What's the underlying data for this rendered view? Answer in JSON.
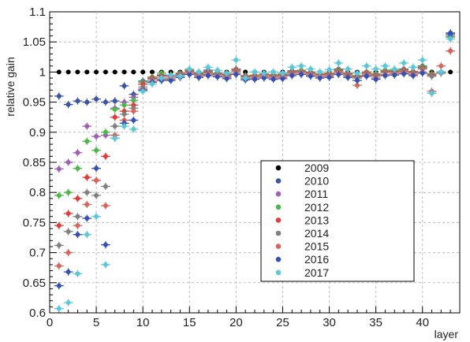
{
  "chart_data": {
    "type": "scatter",
    "title": "",
    "xlabel": "layer",
    "ylabel": "relative gain",
    "xlim": [
      0,
      44
    ],
    "ylim": [
      0.6,
      1.1
    ],
    "xticks": [
      0,
      5,
      10,
      15,
      20,
      25,
      30,
      35,
      40
    ],
    "yticks": [
      0.6,
      0.65,
      0.7,
      0.75,
      0.8,
      0.85,
      0.9,
      0.95,
      1,
      1.05,
      1.1
    ],
    "xtick_labels": [
      "0",
      "5",
      "10",
      "15",
      "20",
      "25",
      "30",
      "35",
      "40"
    ],
    "ytick_labels": [
      "0.6",
      "0.65",
      "0.7",
      "0.75",
      "0.8",
      "0.85",
      "0.9",
      "0.95",
      "1",
      "1.05",
      "1.1"
    ],
    "grid": true,
    "legend_position": "bottom-right",
    "error_bars": {
      "x": 0.5,
      "y": 0.006
    },
    "series": [
      {
        "name": "2009",
        "color": "#000000",
        "x": [
          1,
          2,
          3,
          4,
          5,
          6,
          7,
          8,
          9,
          10,
          11,
          12,
          13,
          14,
          15,
          16,
          17,
          18,
          19,
          20,
          21,
          22,
          23,
          24,
          25,
          26,
          27,
          28,
          29,
          30,
          31,
          32,
          33,
          34,
          35,
          36,
          37,
          38,
          39,
          40,
          41,
          42,
          43
        ],
        "y": [
          1,
          1,
          1,
          1,
          1,
          1,
          1,
          1,
          1,
          1,
          1,
          1,
          1,
          1,
          1,
          1,
          1,
          1,
          1,
          1,
          1,
          1,
          1,
          1,
          1,
          1,
          1,
          1,
          1,
          1,
          1,
          1,
          1,
          1,
          1,
          1,
          1,
          1,
          1,
          1,
          1,
          1,
          1
        ]
      },
      {
        "name": "2010",
        "color": "#3954a6",
        "x": [
          1,
          2,
          3,
          4,
          5,
          6,
          7,
          8,
          9,
          10,
          11,
          12,
          13,
          14,
          15,
          16,
          17,
          18,
          19,
          20,
          21,
          22,
          23,
          24,
          25,
          26,
          27,
          28,
          29,
          30,
          31,
          32,
          33,
          34,
          35,
          36,
          37,
          38,
          39,
          40,
          41,
          42,
          43
        ],
        "y": [
          0.96,
          0.946,
          0.952,
          0.95,
          0.955,
          0.95,
          0.952,
          0.977,
          0.963,
          0.985,
          0.99,
          0.995,
          0.995,
          0.998,
          1.0,
          0.997,
          1.003,
          0.998,
          0.996,
          1.005,
          0.994,
          0.995,
          0.996,
          0.995,
          0.998,
          1.002,
          1.002,
          0.999,
          0.997,
          0.998,
          1.005,
          0.998,
          0.994,
          1.0,
          0.997,
          1.003,
          1.003,
          1.005,
          1.001,
          1.01,
          0.997,
          1.0,
          1.065
        ]
      },
      {
        "name": "2011",
        "color": "#a05eb5",
        "x": [
          1,
          2,
          3,
          4,
          5,
          6,
          7,
          8,
          9,
          10,
          11,
          12,
          13,
          14,
          15,
          16,
          17,
          18,
          19,
          20,
          21,
          22,
          23,
          24,
          25,
          26,
          27,
          28,
          29,
          30,
          31,
          32,
          33,
          34,
          35,
          36,
          37,
          38,
          39,
          40,
          41,
          42,
          43
        ],
        "y": [
          0.839,
          0.85,
          0.866,
          0.91,
          0.893,
          0.895,
          0.94,
          0.95,
          0.958,
          0.98,
          0.99,
          0.99,
          0.993,
          0.996,
          1.003,
          0.998,
          1.0,
          0.998,
          0.996,
          1.005,
          0.993,
          0.995,
          0.997,
          0.995,
          0.996,
          1.0,
          1.002,
          1.0,
          0.996,
          0.997,
          1.003,
          0.998,
          0.993,
          1.0,
          0.996,
          1.002,
          1.002,
          1.004,
          1.0,
          1.008,
          0.996,
          0.999,
          1.06
        ]
      },
      {
        "name": "2012",
        "color": "#4cb848",
        "x": [
          1,
          2,
          3,
          4,
          5,
          6,
          7,
          8,
          9,
          10,
          11,
          12,
          13,
          14,
          15,
          16,
          17,
          18,
          19,
          20,
          21,
          22,
          23,
          24,
          25,
          26,
          27,
          28,
          29,
          30,
          31,
          32,
          33,
          34,
          35,
          36,
          37,
          38,
          39,
          40,
          41,
          42,
          43
        ],
        "y": [
          0.795,
          0.8,
          0.84,
          0.885,
          0.87,
          0.9,
          0.938,
          0.945,
          0.953,
          0.983,
          0.992,
          0.998,
          0.994,
          0.998,
          1.004,
          0.999,
          1.001,
          0.998,
          0.996,
          1.004,
          0.994,
          0.995,
          0.997,
          0.996,
          0.997,
          1.001,
          1.003,
          1.0,
          0.997,
          0.998,
          1.004,
          0.998,
          0.994,
          1.0,
          0.997,
          1.003,
          1.003,
          1.004,
          1.001,
          1.009,
          0.997,
          1.0,
          1.058
        ]
      },
      {
        "name": "2013",
        "color": "#e03c3c",
        "x": [
          1,
          2,
          3,
          4,
          5,
          6,
          7,
          8,
          9,
          10,
          11,
          12,
          13,
          14,
          15,
          16,
          17,
          18,
          19,
          20,
          21,
          22,
          23,
          24,
          25,
          26,
          27,
          28,
          29,
          30,
          31,
          32,
          33,
          34,
          35,
          36,
          37,
          38,
          39,
          40,
          41,
          42,
          43
        ],
        "y": [
          0.745,
          0.765,
          0.79,
          0.825,
          0.82,
          0.86,
          0.925,
          0.935,
          0.945,
          0.98,
          0.99,
          0.993,
          0.993,
          0.997,
          1.002,
          0.997,
          1.0,
          0.997,
          0.995,
          1.003,
          0.993,
          0.994,
          0.996,
          0.994,
          0.995,
          1.0,
          1.001,
          0.999,
          0.996,
          0.997,
          1.002,
          0.997,
          0.992,
          0.999,
          0.995,
          1.001,
          1.001,
          1.003,
          1.0,
          1.007,
          0.995,
          0.999,
          1.035
        ]
      },
      {
        "name": "2014",
        "color": "#808080",
        "x": [
          1,
          2,
          3,
          4,
          5,
          6,
          7,
          8,
          9,
          10,
          11,
          12,
          13,
          14,
          15,
          16,
          17,
          18,
          19,
          20,
          21,
          22,
          23,
          24,
          25,
          26,
          27,
          28,
          29,
          30,
          31,
          32,
          33,
          34,
          35,
          36,
          37,
          38,
          39,
          40,
          41,
          42,
          43
        ],
        "y": [
          0.712,
          0.735,
          0.76,
          0.8,
          0.795,
          0.81,
          0.91,
          0.93,
          0.94,
          0.975,
          0.988,
          0.99,
          0.99,
          0.995,
          1.0,
          0.995,
          0.998,
          0.996,
          0.993,
          1.001,
          0.991,
          0.992,
          0.994,
          0.992,
          0.993,
          0.998,
          1.0,
          0.997,
          0.994,
          0.995,
          1.0,
          0.995,
          0.99,
          0.997,
          0.993,
          0.999,
          0.999,
          1.001,
          0.998,
          1.005,
          0.993,
          0.998,
          1.06
        ]
      },
      {
        "name": "2015",
        "color": "#d8655b",
        "x": [
          1,
          2,
          3,
          4,
          5,
          6,
          7,
          8,
          9,
          10,
          11,
          12,
          13,
          14,
          15,
          16,
          17,
          18,
          19,
          20,
          21,
          22,
          23,
          24,
          25,
          26,
          27,
          28,
          29,
          30,
          31,
          32,
          33,
          34,
          35,
          36,
          37,
          38,
          39,
          40,
          41,
          42,
          43
        ],
        "y": [
          0.678,
          0.7,
          0.745,
          0.78,
          0.82,
          0.778,
          0.895,
          0.92,
          0.935,
          0.972,
          0.985,
          0.988,
          0.988,
          0.993,
          0.998,
          0.993,
          0.996,
          0.994,
          0.991,
          0.998,
          0.989,
          0.99,
          0.992,
          0.99,
          0.991,
          0.996,
          0.998,
          0.995,
          0.992,
          0.993,
          0.998,
          0.993,
          0.978,
          0.995,
          0.99,
          0.996,
          0.997,
          0.999,
          0.996,
          1.0,
          0.968,
          1.01,
          1.035
        ]
      },
      {
        "name": "2016",
        "color": "#3450b5",
        "x": [
          1,
          2,
          3,
          4,
          5,
          6,
          7,
          8,
          9,
          10,
          11,
          12,
          13,
          14,
          15,
          16,
          17,
          18,
          19,
          20,
          21,
          22,
          23,
          24,
          25,
          26,
          27,
          28,
          29,
          30,
          31,
          32,
          33,
          34,
          35,
          36,
          37,
          38,
          39,
          40,
          41,
          42,
          43
        ],
        "y": [
          0.645,
          0.668,
          0.73,
          0.757,
          0.84,
          0.713,
          0.89,
          0.915,
          0.92,
          0.97,
          0.983,
          0.986,
          0.986,
          0.991,
          0.996,
          0.991,
          0.994,
          0.992,
          0.989,
          0.996,
          0.987,
          0.988,
          0.99,
          0.988,
          0.989,
          0.994,
          0.996,
          0.993,
          0.99,
          0.991,
          0.996,
          0.991,
          0.986,
          0.993,
          0.988,
          0.994,
          0.995,
          0.997,
          0.994,
          0.998,
          0.965,
          1.0,
          1.063
        ]
      },
      {
        "name": "2017",
        "color": "#5cc7d8",
        "x": [
          1,
          2,
          3,
          4,
          5,
          6,
          7,
          8,
          9,
          10,
          11,
          12,
          13,
          14,
          15,
          16,
          17,
          18,
          19,
          20,
          21,
          22,
          23,
          24,
          25,
          26,
          27,
          28,
          29,
          30,
          31,
          32,
          33,
          34,
          35,
          36,
          37,
          38,
          39,
          40,
          41,
          42,
          43
        ],
        "y": [
          0.607,
          0.617,
          0.665,
          0.73,
          0.76,
          0.68,
          0.89,
          0.91,
          0.905,
          0.968,
          0.98,
          0.99,
          0.995,
          0.993,
          1.005,
          1.0,
          1.008,
          1.003,
          0.998,
          1.02,
          0.99,
          1.0,
          0.998,
          1.0,
          0.998,
          1.008,
          1.01,
          1.005,
          1.0,
          1.004,
          1.015,
          1.005,
          0.998,
          1.01,
          1.005,
          1.01,
          1.005,
          1.015,
          1.008,
          1.02,
          0.965,
          1.0,
          1.055
        ]
      }
    ]
  }
}
